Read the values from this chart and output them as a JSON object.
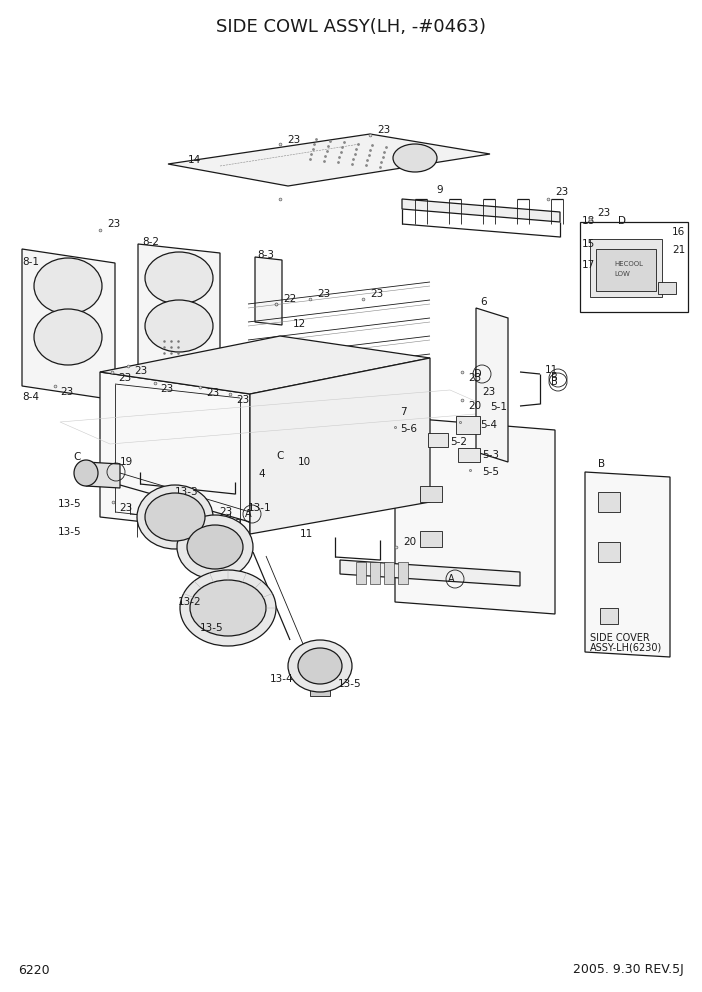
{
  "title": "SIDE COWL ASSY(LH, -#0463)",
  "page_number": "6220",
  "revision": "2005. 9.30 REV.5J",
  "bg": "#ffffff",
  "lc": "#1a1a1a",
  "title_fs": 13,
  "label_fs": 7.5,
  "footer_fs": 9,
  "fig_w": 7.02,
  "fig_h": 9.92,
  "dpi": 100
}
